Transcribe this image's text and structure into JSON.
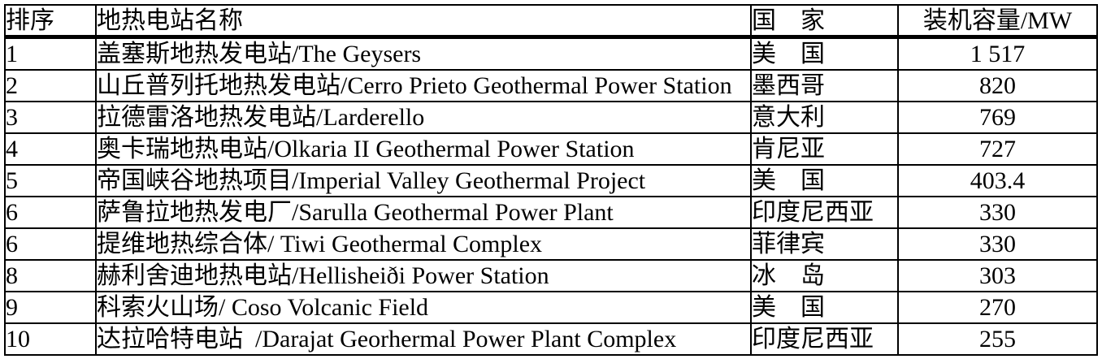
{
  "colors": {
    "background": "#ffffff",
    "text": "#000000",
    "border": "#000000"
  },
  "table": {
    "columns": [
      {
        "key": "rank",
        "label": "排序"
      },
      {
        "key": "name",
        "label": "地热电站名称"
      },
      {
        "key": "country",
        "label": "国　家"
      },
      {
        "key": "capacity",
        "label": "装机容量/MW"
      }
    ],
    "rows": [
      {
        "rank": "1",
        "name": "盖塞斯地热发电站/The Geysers",
        "country": "美　国",
        "capacity": "1 517"
      },
      {
        "rank": "2",
        "name": "山丘普列托地热发电站/Cerro Prieto Geothermal Power Station",
        "country": "墨西哥",
        "capacity": "820"
      },
      {
        "rank": "3",
        "name": "拉德雷洛地热发电站/Larderello",
        "country": "意大利",
        "capacity": "769"
      },
      {
        "rank": "4",
        "name": "奥卡瑞地热电站/Olkaria II Geothermal Power Station",
        "country": "肯尼亚",
        "capacity": "727"
      },
      {
        "rank": "5",
        "name": "帝国峡谷地热项目/Imperial Valley Geothermal Project",
        "country": "美　国",
        "capacity": "403.4"
      },
      {
        "rank": "6",
        "name": "萨鲁拉地热发电厂/Sarulla Geothermal Power Plant",
        "country": "印度尼西亚",
        "capacity": "330"
      },
      {
        "rank": "6",
        "name": "提维地热综合体/ Tiwi Geothermal Complex",
        "country": "菲律宾",
        "capacity": "330"
      },
      {
        "rank": "8",
        "name": "赫利舍迪地热电站/Hellisheiði Power Station",
        "country": "冰　岛",
        "capacity": "303"
      },
      {
        "rank": "9",
        "name": "科索火山场/ Coso Volcanic Field",
        "country": "美　国",
        "capacity": "270"
      },
      {
        "rank": "10",
        "name": "达拉哈特电站  /Darajat Georhermal Power Plant Complex",
        "country": "印度尼西亚",
        "capacity": "255"
      }
    ]
  }
}
